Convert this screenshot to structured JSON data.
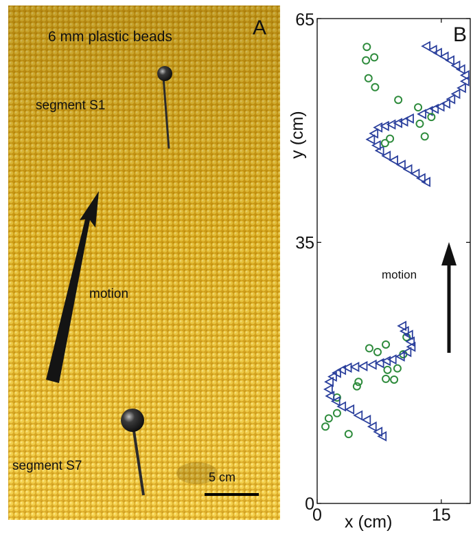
{
  "panel_a": {
    "letter": "A",
    "title": "6 mm plastic beads",
    "label_s1": "segment S1",
    "label_s7": "segment S7",
    "motion_label": "motion",
    "scale_label": "5 cm",
    "colors": {
      "beads": "#e2ad1a",
      "beads_light": "#f6d44a",
      "beads_dark": "#9a6c06",
      "arrow": "#111111",
      "pin": "#222222"
    }
  },
  "chart_data": {
    "type": "scatter",
    "panel_letter": "B",
    "xlabel": "x (cm)",
    "ylabel": "y (cm)",
    "xlim": [
      0,
      18.5
    ],
    "ylim": [
      0,
      65
    ],
    "xticks": [
      0,
      15
    ],
    "yticks": [
      0,
      35,
      65
    ],
    "motion_label": "motion",
    "grid": false,
    "series": [
      {
        "marker": "circle",
        "color": "#2e8b3c",
        "points": [
          [
            10.8,
            22.3
          ],
          [
            10.4,
            20.0
          ],
          [
            8.3,
            21.3
          ],
          [
            7.3,
            20.3
          ],
          [
            6.3,
            20.8
          ],
          [
            9.7,
            18.1
          ],
          [
            8.5,
            17.9
          ],
          [
            8.3,
            16.7
          ],
          [
            9.3,
            16.6
          ],
          [
            5.0,
            16.3
          ],
          [
            4.8,
            15.7
          ],
          [
            2.4,
            14.2
          ],
          [
            2.4,
            12.1
          ],
          [
            1.4,
            11.4
          ],
          [
            1.0,
            10.3
          ],
          [
            3.8,
            9.3
          ]
        ]
      },
      {
        "marker": "triangle-left",
        "color": "#2a3f9c",
        "points": [
          [
            13.2,
            61.3
          ],
          [
            14.0,
            60.8
          ],
          [
            14.6,
            60.4
          ],
          [
            15.4,
            59.9
          ],
          [
            16.1,
            59.4
          ],
          [
            16.8,
            58.7
          ],
          [
            17.4,
            58.2
          ],
          [
            17.9,
            57.4
          ],
          [
            17.9,
            56.6
          ],
          [
            17.5,
            55.7
          ],
          [
            16.8,
            54.9
          ],
          [
            16.2,
            54.2
          ],
          [
            15.6,
            53.6
          ],
          [
            14.9,
            53.2
          ],
          [
            14.2,
            52.9
          ],
          [
            13.5,
            52.6
          ],
          [
            12.7,
            52.2
          ],
          [
            11.2,
            51.6
          ],
          [
            10.5,
            51.2
          ],
          [
            9.8,
            51.0
          ],
          [
            9.0,
            50.8
          ],
          [
            8.2,
            50.6
          ],
          [
            7.4,
            50.4
          ],
          [
            6.9,
            49.6
          ],
          [
            6.5,
            48.8
          ],
          [
            7.2,
            48.0
          ],
          [
            7.6,
            47.3
          ],
          [
            8.4,
            46.6
          ],
          [
            9.3,
            46.0
          ],
          [
            10.2,
            45.4
          ],
          [
            11.0,
            44.8
          ],
          [
            11.9,
            44.2
          ],
          [
            12.6,
            43.6
          ],
          [
            13.2,
            43.1
          ],
          [
            10.3,
            23.8
          ],
          [
            10.6,
            23.1
          ],
          [
            11.1,
            22.6
          ],
          [
            11.3,
            21.7
          ],
          [
            11.4,
            21.0
          ],
          [
            10.9,
            20.3
          ],
          [
            10.1,
            19.7
          ],
          [
            9.1,
            19.3
          ],
          [
            8.4,
            19.1
          ],
          [
            7.6,
            18.8
          ],
          [
            6.7,
            18.6
          ],
          [
            5.6,
            18.4
          ],
          [
            4.6,
            18.3
          ],
          [
            3.7,
            18.2
          ],
          [
            3.0,
            17.9
          ],
          [
            2.4,
            17.5
          ],
          [
            1.9,
            17.0
          ],
          [
            1.5,
            16.3
          ],
          [
            1.4,
            15.3
          ],
          [
            1.6,
            14.4
          ],
          [
            2.3,
            13.7
          ],
          [
            3.0,
            13.0
          ],
          [
            4.0,
            12.6
          ],
          [
            5.0,
            11.8
          ],
          [
            6.0,
            11.2
          ],
          [
            6.7,
            10.3
          ],
          [
            7.4,
            9.6
          ],
          [
            7.9,
            9.0
          ]
        ]
      },
      {
        "marker": "circle",
        "color": "#2e8b3c",
        "points": [
          [
            6.0,
            61.2
          ],
          [
            5.9,
            59.4
          ],
          [
            6.9,
            59.8
          ],
          [
            6.2,
            57.0
          ],
          [
            7.0,
            55.8
          ],
          [
            9.8,
            54.1
          ],
          [
            12.2,
            53.1
          ],
          [
            13.8,
            51.8
          ],
          [
            13.0,
            49.2
          ],
          [
            12.4,
            50.9
          ],
          [
            8.8,
            48.9
          ],
          [
            8.2,
            48.3
          ]
        ]
      }
    ]
  }
}
